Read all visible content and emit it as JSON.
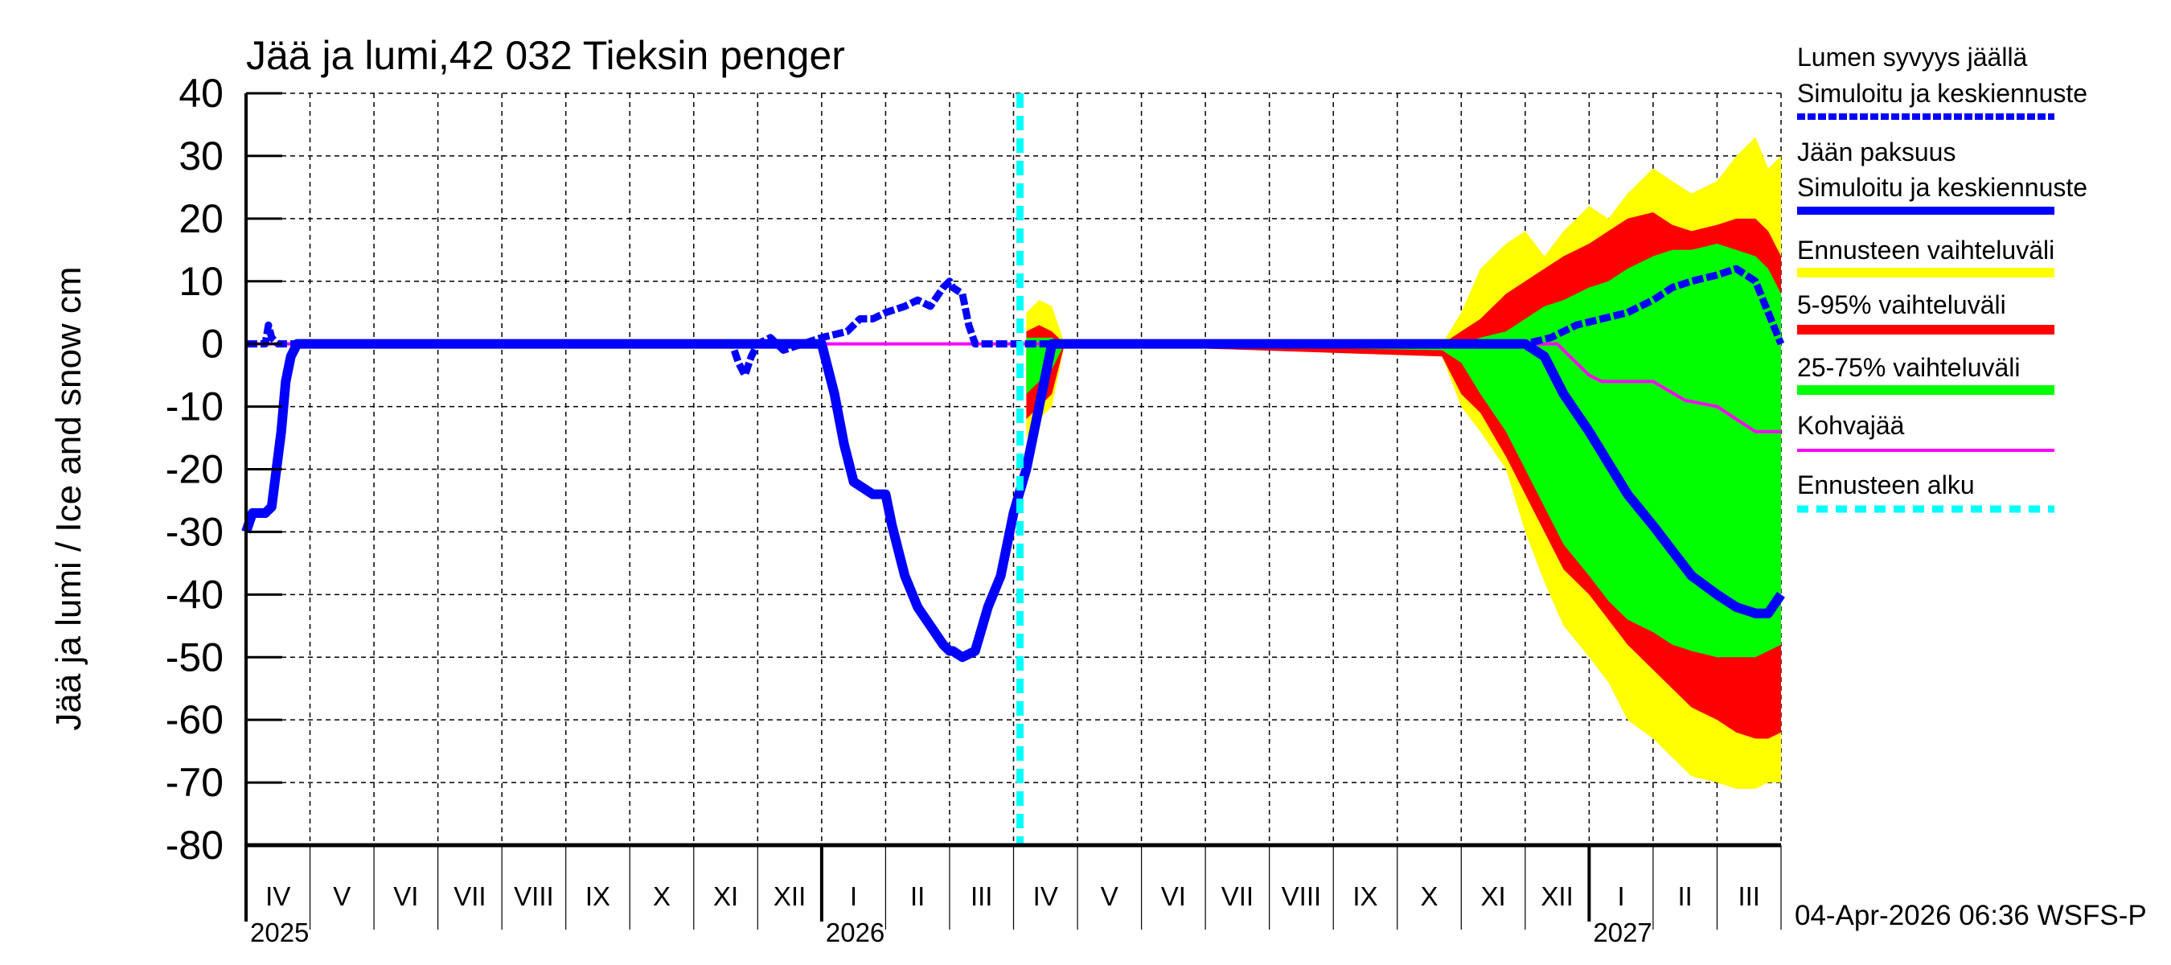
{
  "chart_data": {
    "type": "area",
    "title": "Jää ja lumi,42 032 Tieksin penger",
    "ylabel": "Jää ja lumi / Ice and snow    cm",
    "xlabel": "",
    "ylim": [
      -80,
      40
    ],
    "yticks": [
      40,
      30,
      20,
      10,
      0,
      -10,
      -20,
      -30,
      -40,
      -50,
      -60,
      -70,
      -80
    ],
    "grid": true,
    "legend_position": "right",
    "x_months": [
      "IV",
      "V",
      "VI",
      "VII",
      "VIII",
      "IX",
      "X",
      "XI",
      "XII",
      "I",
      "II",
      "III",
      "IV",
      "V",
      "VI",
      "VII",
      "VIII",
      "IX",
      "X",
      "XI",
      "XII",
      "I",
      "II",
      "III"
    ],
    "x_years": [
      {
        "label": "2025",
        "month_index": 0
      },
      {
        "label": "2026",
        "month_index": 9
      },
      {
        "label": "2027",
        "month_index": 21
      }
    ],
    "forecast_start": "2026-04-04",
    "timestamp": "04-Apr-2026 06:36 WSFS-P",
    "legend": [
      {
        "label": "Lumen syvyys jäällä\nSimuloitu ja keskiennuste",
        "line1": "Lumen syvyys jäällä",
        "line2": "Simuloitu ja keskiennuste",
        "color": "#0000ff",
        "style": "dashed-thick"
      },
      {
        "label": "Jään paksuus\nSimuloitu ja keskiennuste",
        "line1": "Jään paksuus",
        "line2": "Simuloitu ja keskiennuste",
        "color": "#0000ff",
        "style": "solid-thick"
      },
      {
        "label": "Ennusteen vaihteluväli",
        "color": "#ffff00",
        "style": "band"
      },
      {
        "label": "5-95% vaihteluväli",
        "color": "#ff0000",
        "style": "band"
      },
      {
        "label": "25-75% vaihteluväli",
        "color": "#00ff00",
        "style": "band"
      },
      {
        "label": "Kohvajää",
        "color": "#ff00ff",
        "style": "solid-thin"
      },
      {
        "label": "Ennusteen alku",
        "color": "#00ffff",
        "style": "dashed-thick"
      }
    ],
    "series": [
      {
        "name": "Jään paksuus (ice thickness, shown negative)",
        "x_month_pos": [
          0.0,
          0.1,
          0.3,
          0.4,
          0.45,
          0.55,
          0.62,
          0.7,
          0.8,
          1.0,
          8.0,
          9.0,
          9.2,
          9.35,
          9.5,
          9.8,
          10.0,
          10.1,
          10.3,
          10.5,
          10.7,
          10.9,
          11.0,
          11.05,
          11.2,
          11.4,
          11.6,
          11.8,
          12.0,
          12.2,
          12.4,
          12.6,
          12.8,
          13.0,
          20.0,
          20.3,
          20.6,
          21.0,
          21.3,
          21.6,
          22.0,
          22.3,
          22.6,
          23.0,
          23.3,
          23.6,
          23.8,
          24.0
        ],
        "values": [
          -30,
          -27,
          -27,
          -26,
          -22,
          -14,
          -6,
          -2,
          0,
          0,
          0,
          0,
          -8,
          -16,
          -22,
          -24,
          -24,
          -29,
          -37,
          -42,
          -45,
          -48,
          -49,
          -49,
          -50,
          -49,
          -42,
          -37,
          -27,
          -20,
          -10,
          0,
          0,
          0,
          0,
          -2,
          -8,
          -14,
          -19,
          -24,
          -29,
          -33,
          -37,
          -40,
          -42,
          -43,
          -43,
          -40
        ]
      },
      {
        "name": "Lumen syvyys jäällä (snow depth on ice)",
        "x_month_pos": [
          0.0,
          0.3,
          0.35,
          0.4,
          0.5,
          7.6,
          7.7,
          7.8,
          7.9,
          8.0,
          8.2,
          8.3,
          8.4,
          9.0,
          9.4,
          9.6,
          9.8,
          10.0,
          10.3,
          10.5,
          10.7,
          10.9,
          11.0,
          11.05,
          11.2,
          11.3,
          11.4,
          11.6,
          12.0,
          20.0,
          20.4,
          20.8,
          21.2,
          21.6,
          22.0,
          22.3,
          22.6,
          23.0,
          23.3,
          23.6,
          23.8,
          24.0
        ],
        "values": [
          0,
          0,
          3,
          1,
          0,
          0,
          -3,
          -5,
          -2,
          0,
          1,
          0,
          -1,
          1,
          2,
          4,
          4,
          5,
          6,
          7,
          6,
          9,
          10,
          9,
          8,
          3,
          0,
          0,
          0,
          0,
          1,
          3,
          4,
          5,
          7,
          9,
          10,
          11,
          12,
          10,
          5,
          0
        ]
      },
      {
        "name": "Kohvajää (slush ice)",
        "x_month_pos": [
          0,
          20.5,
          20.8,
          21.0,
          21.2,
          22.0,
          22.5,
          23.0,
          23.3,
          23.6,
          24.0
        ],
        "values": [
          0,
          0,
          -3,
          -5,
          -6,
          -6,
          -9,
          -10,
          -12,
          -14,
          -14
        ]
      }
    ],
    "bands": {
      "x_month_pos": [
        12.2,
        12.4,
        12.6,
        12.8,
        18.7,
        19.0,
        19.3,
        19.7,
        20.0,
        20.3,
        20.6,
        21.0,
        21.3,
        21.6,
        22.0,
        22.3,
        22.6,
        23.0,
        23.3,
        23.6,
        23.8,
        24.0
      ],
      "ennuste_upper": [
        5,
        7,
        6,
        0,
        0,
        5,
        12,
        16,
        18,
        14,
        18,
        22,
        20,
        24,
        28,
        26,
        24,
        26,
        30,
        33,
        28,
        30
      ],
      "ennuste_lower": [
        -15,
        -12,
        -10,
        0,
        -2,
        -10,
        -14,
        -20,
        -30,
        -38,
        -45,
        -50,
        -54,
        -60,
        -63,
        -66,
        -69,
        -70,
        -71,
        -71,
        -70,
        -70
      ],
      "p95": [
        2,
        3,
        2,
        0,
        0,
        2,
        4,
        8,
        10,
        12,
        14,
        16,
        18,
        20,
        21,
        19,
        18,
        19,
        20,
        20,
        18,
        14
      ],
      "p5": [
        -12,
        -10,
        -8,
        0,
        -2,
        -8,
        -11,
        -18,
        -24,
        -30,
        -36,
        -40,
        -44,
        -48,
        -52,
        -55,
        -58,
        -60,
        -62,
        -63,
        -63,
        -62
      ],
      "p75": [
        1,
        1,
        1,
        0,
        0,
        0,
        1,
        2,
        4,
        6,
        7,
        9,
        10,
        12,
        14,
        15,
        15,
        16,
        15,
        14,
        12,
        8
      ],
      "p25": [
        -8,
        -6,
        -4,
        0,
        -1,
        -3,
        -8,
        -14,
        -20,
        -26,
        -32,
        -37,
        -41,
        -44,
        -46,
        -48,
        -49,
        -50,
        -50,
        -50,
        -49,
        -48
      ]
    }
  },
  "footer": {
    "timestamp": "04-Apr-2026 06:36 WSFS-P"
  }
}
